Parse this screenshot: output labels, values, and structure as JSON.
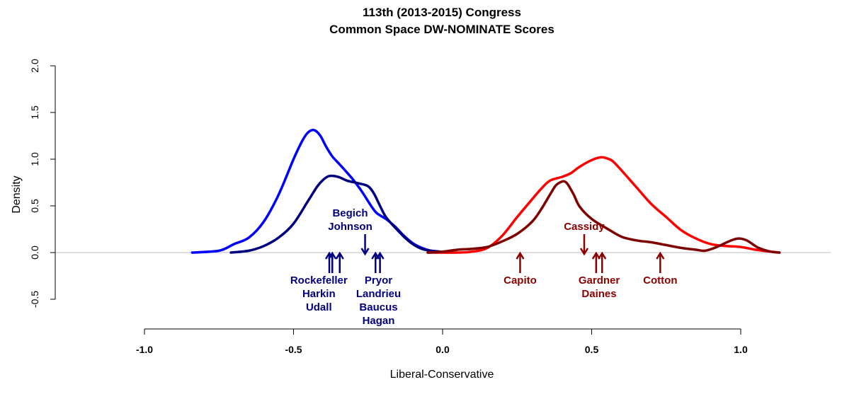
{
  "chart_data": {
    "type": "line",
    "title": "113th (2013-2015) Congress",
    "subtitle": "Common Space DW-NOMINATE Scores",
    "xlabel": "Liberal-Conservative",
    "ylabel": "Density",
    "xlim": [
      -1.0,
      1.0
    ],
    "ylim": [
      -0.5,
      2.0
    ],
    "x_ticks": [
      -1.0,
      -0.5,
      0.0,
      0.5,
      1.0
    ],
    "x_tick_labels": [
      "-1.0",
      "-0.5",
      "0.0",
      "0.5",
      "1.0"
    ],
    "y_ticks": [
      -0.5,
      0.0,
      0.5,
      1.0,
      1.5,
      2.0
    ],
    "y_tick_labels": [
      "-0.5",
      "0.0",
      "0.5",
      "1.0",
      "1.5",
      "2.0"
    ],
    "baseline": 0.0,
    "grid": false,
    "series": [
      {
        "color": "#0000ff",
        "x": [
          -0.84,
          -0.75,
          -0.7,
          -0.65,
          -0.6,
          -0.55,
          -0.5,
          -0.47,
          -0.45,
          -0.43,
          -0.41,
          -0.39,
          -0.37,
          -0.35,
          -0.33,
          -0.3,
          -0.27,
          -0.24,
          -0.22,
          -0.19,
          -0.16,
          -0.13,
          -0.1,
          -0.07,
          -0.04,
          -0.01
        ],
        "y": [
          0.0,
          0.02,
          0.09,
          0.16,
          0.33,
          0.62,
          1.0,
          1.2,
          1.29,
          1.31,
          1.25,
          1.13,
          1.03,
          0.96,
          0.89,
          0.78,
          0.65,
          0.5,
          0.42,
          0.36,
          0.28,
          0.18,
          0.1,
          0.05,
          0.02,
          0.01
        ]
      },
      {
        "color": "#00007f",
        "x": [
          -0.71,
          -0.65,
          -0.6,
          -0.55,
          -0.5,
          -0.45,
          -0.42,
          -0.4,
          -0.38,
          -0.35,
          -0.32,
          -0.28,
          -0.25,
          -0.23,
          -0.21,
          -0.19,
          -0.16,
          -0.13,
          -0.1,
          -0.07,
          -0.04,
          -0.01
        ],
        "y": [
          0.0,
          0.02,
          0.07,
          0.16,
          0.31,
          0.56,
          0.71,
          0.78,
          0.82,
          0.81,
          0.77,
          0.74,
          0.71,
          0.63,
          0.5,
          0.38,
          0.27,
          0.17,
          0.09,
          0.04,
          0.02,
          0.01
        ]
      },
      {
        "color": "#ff0000",
        "x": [
          -0.05,
          0.05,
          0.1,
          0.15,
          0.2,
          0.25,
          0.3,
          0.33,
          0.36,
          0.4,
          0.43,
          0.46,
          0.5,
          0.53,
          0.55,
          0.57,
          0.6,
          0.65,
          0.7,
          0.75,
          0.8,
          0.85,
          0.9,
          0.95,
          1.0,
          1.05,
          1.1,
          1.13
        ],
        "y": [
          0.0,
          0.0,
          0.01,
          0.05,
          0.18,
          0.38,
          0.57,
          0.68,
          0.77,
          0.81,
          0.85,
          0.92,
          0.99,
          1.02,
          1.01,
          0.98,
          0.88,
          0.7,
          0.52,
          0.38,
          0.24,
          0.15,
          0.09,
          0.07,
          0.06,
          0.03,
          0.01,
          0.0
        ]
      },
      {
        "color": "#7f0000",
        "x": [
          -0.05,
          0.0,
          0.05,
          0.1,
          0.15,
          0.2,
          0.25,
          0.3,
          0.33,
          0.36,
          0.38,
          0.4,
          0.41,
          0.42,
          0.44,
          0.46,
          0.5,
          0.55,
          0.6,
          0.65,
          0.7,
          0.75,
          0.8,
          0.85,
          0.88,
          0.92,
          0.96,
          0.99,
          1.02,
          1.06,
          1.1,
          1.13
        ],
        "y": [
          0.0,
          0.01,
          0.03,
          0.04,
          0.06,
          0.12,
          0.2,
          0.33,
          0.46,
          0.62,
          0.72,
          0.76,
          0.76,
          0.73,
          0.62,
          0.49,
          0.36,
          0.26,
          0.17,
          0.13,
          0.11,
          0.08,
          0.05,
          0.03,
          0.02,
          0.06,
          0.12,
          0.15,
          0.13,
          0.05,
          0.01,
          0.0
        ]
      }
    ],
    "annotations": [
      {
        "label_lines": [
          "Begich",
          "Johnson"
        ],
        "color": "#00007f",
        "arrows": [
          -0.26
        ],
        "label_x": -0.31,
        "direction": "down",
        "label_position": "above"
      },
      {
        "label_lines": [
          "Rockefeller",
          "Harkin",
          "Udall"
        ],
        "color": "#00007f",
        "arrows": [
          -0.38,
          -0.37,
          -0.345
        ],
        "label_x": -0.415,
        "direction": "up",
        "label_position": "below"
      },
      {
        "label_lines": [
          "Pryor",
          "Landrieu",
          "Baucus",
          "Hagan"
        ],
        "color": "#00007f",
        "arrows": [
          -0.225,
          -0.21
        ],
        "label_x": -0.215,
        "direction": "up",
        "label_position": "below"
      },
      {
        "label_lines": [
          "Capito"
        ],
        "color": "#8b0000",
        "arrows": [
          0.26
        ],
        "label_x": 0.26,
        "direction": "up",
        "label_position": "below"
      },
      {
        "label_lines": [
          "Cassidy"
        ],
        "color": "#8b0000",
        "arrows": [
          0.475
        ],
        "label_x": 0.475,
        "direction": "down",
        "label_position": "above"
      },
      {
        "label_lines": [
          "Gardner",
          "Daines"
        ],
        "color": "#8b0000",
        "arrows": [
          0.515,
          0.535
        ],
        "label_x": 0.525,
        "direction": "up",
        "label_position": "below"
      },
      {
        "label_lines": [
          "Cotton"
        ],
        "color": "#8b0000",
        "arrows": [
          0.73
        ],
        "label_x": 0.73,
        "direction": "up",
        "label_position": "below"
      }
    ]
  }
}
